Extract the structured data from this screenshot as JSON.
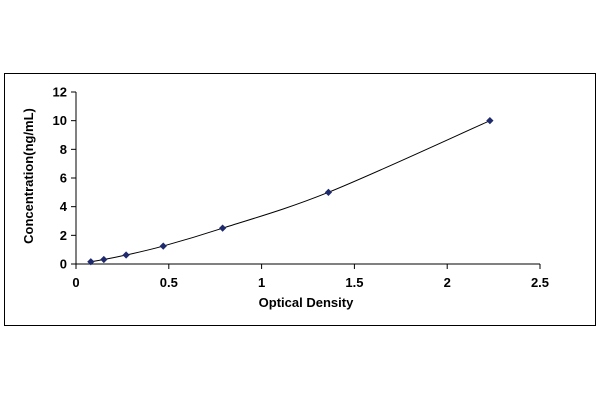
{
  "chart_data": {
    "type": "scatter",
    "title": "",
    "xlabel": "Optical Density",
    "ylabel": "Concentration(ng/mL)",
    "xlim": [
      0,
      2.5
    ],
    "ylim": [
      0,
      12
    ],
    "x_ticks": [
      0,
      0.5,
      1,
      1.5,
      2,
      2.5
    ],
    "x_tick_labels": [
      "0",
      "0.5",
      "1",
      "1.5",
      "2",
      "2.5"
    ],
    "y_ticks": [
      0,
      2,
      4,
      6,
      8,
      10,
      12
    ],
    "y_tick_labels": [
      "0",
      "2",
      "4",
      "6",
      "8",
      "10",
      "12"
    ],
    "grid": false,
    "legend": "none",
    "series": [
      {
        "x": [
          0.08,
          0.15,
          0.27,
          0.47,
          0.79,
          1.36,
          2.23
        ],
        "y": [
          0.156,
          0.312,
          0.625,
          1.25,
          2.5,
          5,
          10
        ],
        "marker": "diamond",
        "trendline": "smooth curve"
      }
    ],
    "colors": {
      "marker": "#1f2a6e",
      "line": "#000000",
      "axis": "#000000"
    }
  }
}
